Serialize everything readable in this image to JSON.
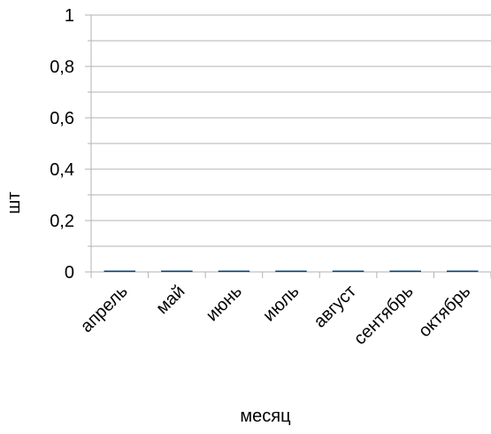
{
  "chart_data": {
    "type": "bar",
    "categories": [
      "апрель",
      "май",
      "июнь",
      "июль",
      "август",
      "сентябрь",
      "октябрь"
    ],
    "values": [
      0,
      0,
      0,
      0,
      0,
      0,
      0
    ],
    "xlabel": "месяц",
    "ylabel": "шт",
    "ylim": [
      0,
      1
    ],
    "yticks": [
      "0",
      "0,2",
      "0,4",
      "0,6",
      "0,8",
      "1"
    ],
    "grid": true,
    "colors": {
      "bar": "#004586",
      "grid": "#b3b3b3",
      "axis": "#b3b3b3",
      "text": "#000000"
    }
  }
}
